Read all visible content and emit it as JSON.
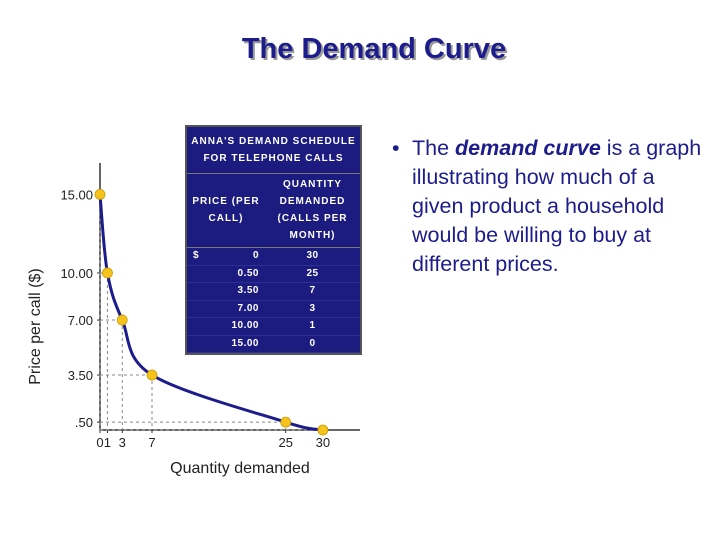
{
  "header": {
    "title": "The Demand Curve"
  },
  "chart_data": {
    "type": "line",
    "x": [
      0,
      1,
      3,
      7,
      25,
      30
    ],
    "series": [
      {
        "color": "#1c1c8c",
        "marker_color": "#f5c31c",
        "values": [
          15,
          10,
          7,
          3.5,
          0.5,
          0
        ]
      }
    ],
    "xlim": [
      0,
      35
    ],
    "ylim": [
      0,
      17
    ],
    "xticks": [
      0,
      1,
      3,
      7,
      25,
      30
    ],
    "yticks": [
      {
        "value": 15,
        "label": "15.00"
      },
      {
        "value": 10,
        "label": "10.00"
      },
      {
        "value": 7,
        "label": "7.00"
      },
      {
        "value": 3.5,
        "label": "3.50"
      },
      {
        "value": 0.5,
        "label": ".50"
      }
    ],
    "xlabel": "Quantity demanded",
    "ylabel": "Price per call ($)",
    "guides": true
  },
  "table": {
    "title": "ANNA'S DEMAND SCHEDULE FOR TELEPHONE CALLS",
    "headers": [
      "PRICE (PER CALL)",
      "QUANTITY DEMANDED (CALLS PER MONTH)"
    ],
    "currency": "$",
    "rows": [
      [
        "0",
        "30"
      ],
      [
        "0.50",
        "25"
      ],
      [
        "3.50",
        "7"
      ],
      [
        "7.00",
        "3"
      ],
      [
        "10.00",
        "1"
      ],
      [
        "15.00",
        "0"
      ]
    ]
  },
  "bullet": {
    "parts": [
      "The ",
      "demand curve",
      " is a graph illustrating how much of a given product a household would be willing to buy at different prices."
    ]
  }
}
